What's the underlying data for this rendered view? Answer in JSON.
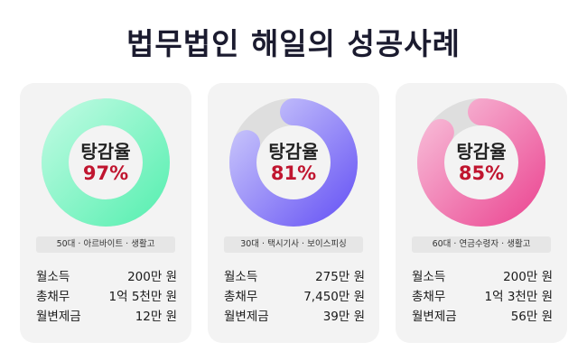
{
  "title": "법무법인 해일의 성공사례",
  "cards": [
    {
      "donut_label": "탕감율",
      "percent_text": "97%",
      "percent": 97,
      "color_start": "#5ff0b4",
      "color_end": "#b8fadf",
      "tag": "50대 · 아르바이트 · 생활고",
      "rows": [
        {
          "label": "월소득",
          "value": "200만 원"
        },
        {
          "label": "총채무",
          "value": "1억 5천만 원"
        },
        {
          "label": "월변제금",
          "value": "12만 원"
        }
      ]
    },
    {
      "donut_label": "탕감율",
      "percent_text": "81%",
      "percent": 81,
      "color_start": "#6e5cf5",
      "color_end": "#c9c6fb",
      "tag": "30대 · 택시기사 · 보이스피싱",
      "rows": [
        {
          "label": "월소득",
          "value": "275만 원"
        },
        {
          "label": "총채무",
          "value": "7,450만 원"
        },
        {
          "label": "월변제금",
          "value": "39만 원"
        }
      ]
    },
    {
      "donut_label": "탕감율",
      "percent_text": "85%",
      "percent": 85,
      "color_start": "#ec4f97",
      "color_end": "#f7b9d6",
      "tag": "60대 · 연금수령자 · 생활고",
      "rows": [
        {
          "label": "월소득",
          "value": "200만 원"
        },
        {
          "label": "총채무",
          "value": "1억 3천만 원"
        },
        {
          "label": "월변제금",
          "value": "56만 원"
        }
      ]
    }
  ]
}
